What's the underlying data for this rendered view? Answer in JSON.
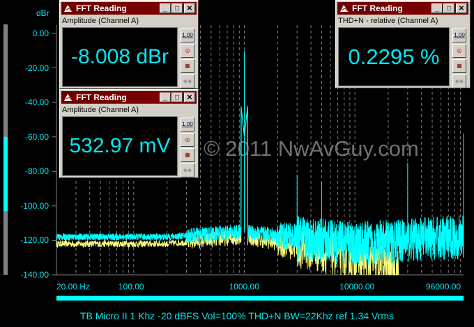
{
  "chart_data": {
    "type": "line",
    "ylabel": "dBr",
    "x_scale": "log",
    "xlim": [
      20,
      96000
    ],
    "ylim": [
      -140,
      0
    ],
    "y_ticks": [
      "0.00",
      "-20.00",
      "-40.00",
      "-60.00",
      "-80.00",
      "-100.00",
      "-120.00",
      "-140.00"
    ],
    "x_ticks": [
      "20.00 Hz",
      "100.00",
      "1000.00",
      "10000.00",
      "96000.00"
    ],
    "grid": "vertical dashed",
    "series": [
      {
        "color": "#00ffff",
        "peaks": [
          {
            "x": 1000,
            "y": -10
          },
          {
            "x": 1000,
            "y": -55
          },
          {
            "x": 3000,
            "y": -82
          },
          {
            "x": 5000,
            "y": -86
          },
          {
            "x": 30000,
            "y": -75
          },
          {
            "x": 96000,
            "y": -58
          }
        ],
        "noise_floor": [
          {
            "x": 20,
            "y": -118
          },
          {
            "x": 200,
            "y": -118
          },
          {
            "x": 1000,
            "y": -115
          },
          {
            "x": 10000,
            "y": -122
          },
          {
            "x": 30000,
            "y": -120
          },
          {
            "x": 96000,
            "y": -118
          }
        ]
      },
      {
        "color": "#ffff80",
        "noise_floor": [
          {
            "x": 20,
            "y": -122
          },
          {
            "x": 200,
            "y": -122
          },
          {
            "x": 1000,
            "y": -118
          },
          {
            "x": 10000,
            "y": -130
          },
          {
            "x": 25000,
            "y": -138
          }
        ]
      }
    ],
    "caption": "TB Micro II 1 Khz -20 dBFS Vol=100% THD+N BW=22Khz ref 1.34 Vrms"
  },
  "level_meter": {
    "range_dbr": [
      -140,
      0
    ],
    "lit_from": -60,
    "lit_to": -103,
    "color": "#00ffff"
  },
  "watermark": "© 2011 NwAvGuy.com",
  "windows": [
    {
      "title": "FFT Reading",
      "subtitle": "Amplitude (Channel A)",
      "value": "-8.008 dBr"
    },
    {
      "title": "FFT Reading",
      "subtitle": "Amplitude (Channel A)",
      "value": "532.97 mV"
    },
    {
      "title": "FFT Reading",
      "subtitle": "THD+N - relative (Channel A)",
      "value": "0.2295 %"
    }
  ],
  "window_buttons": {
    "minimize": "_",
    "maximize": "□",
    "close": "✕",
    "scale": "1.00"
  }
}
